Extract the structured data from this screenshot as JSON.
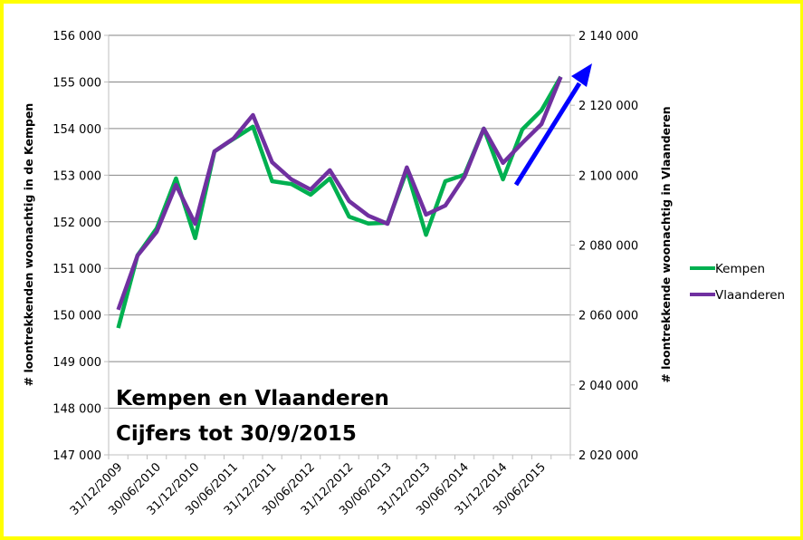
{
  "chart_data": {
    "type": "line",
    "title": "",
    "annotation_lines": [
      "Kempen en Vlaanderen",
      "Cijfers tot 30/9/2015"
    ],
    "xlabel": "",
    "ylabel_left": "# loontrekkenden woonachtig in de Kempen",
    "ylabel_right": "# loontrekkende woonachtig in Vlaanderen",
    "ylim_left": [
      147000,
      156000
    ],
    "ylim_right": [
      2020000,
      2140000
    ],
    "yticks_left": [
      "147 000",
      "148 000",
      "149 000",
      "150 000",
      "151 000",
      "152 000",
      "153 000",
      "154 000",
      "155 000",
      "156 000"
    ],
    "yticks_right": [
      "2 020 000",
      "2 040 000",
      "2 060 000",
      "2 080 000",
      "2 100 000",
      "2 120 000",
      "2 140 000"
    ],
    "x_tick_labels": [
      "31/12/2009",
      "30/06/2010",
      "31/12/2010",
      "30/06/2011",
      "31/12/2011",
      "30/06/2012",
      "31/12/2012",
      "30/06/2013",
      "31/12/2013",
      "30/06/2014",
      "31/12/2014",
      "30/06/2015"
    ],
    "x": [
      "31/12/2009",
      "31/03/2010",
      "30/06/2010",
      "30/09/2010",
      "31/12/2010",
      "31/03/2011",
      "30/06/2011",
      "30/09/2011",
      "31/12/2011",
      "31/03/2012",
      "30/06/2012",
      "30/09/2012",
      "31/12/2012",
      "31/03/2013",
      "30/06/2013",
      "30/09/2013",
      "31/12/2013",
      "31/03/2014",
      "30/06/2014",
      "30/09/2014",
      "31/12/2014",
      "31/03/2015",
      "30/06/2015",
      "30/09/2015"
    ],
    "grid": true,
    "legend_position": "right",
    "series": [
      {
        "name": "Kempen",
        "axis": "left",
        "color": "#00b050",
        "values": [
          149720,
          151280,
          151860,
          152930,
          151650,
          153510,
          153780,
          154040,
          152870,
          152810,
          152580,
          152930,
          152110,
          151960,
          151980,
          153100,
          151720,
          152870,
          153010,
          154000,
          152910,
          153980,
          154390,
          155110
        ]
      },
      {
        "name": "Vlaanderen",
        "axis": "right",
        "color": "#7030a0",
        "values": [
          2061500,
          2077000,
          2083800,
          2097200,
          2086100,
          2106800,
          2110500,
          2117200,
          2103700,
          2098800,
          2095900,
          2101400,
          2092600,
          2088400,
          2086100,
          2102200,
          2088700,
          2091300,
          2099600,
          2113300,
          2103500,
          2109200,
          2114600,
          2128100
        ]
      }
    ],
    "arrow": {
      "color": "#0000ff",
      "meaning": "upward trend"
    }
  },
  "colors": {
    "border": "#ffff00",
    "gridline": "#868686",
    "axis": "#bfbfbf"
  }
}
